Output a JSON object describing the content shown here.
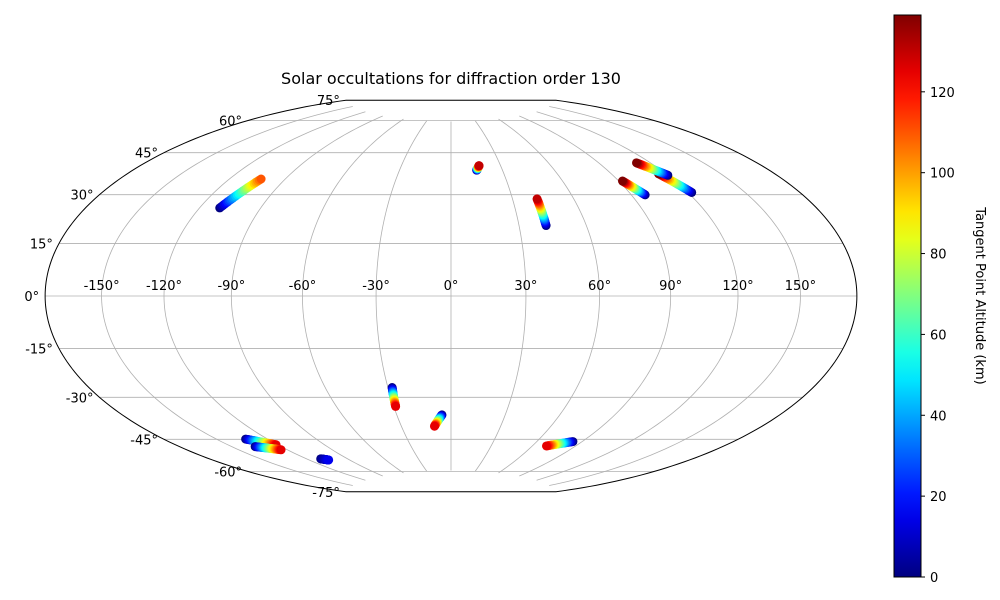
{
  "chart_data": {
    "type": "scatter",
    "projection": "hammer",
    "title": "Solar occultations for diffraction order 130",
    "xticks": [
      "-150°",
      "-120°",
      "-90°",
      "-60°",
      "-30°",
      "0°",
      "30°",
      "60°",
      "90°",
      "120°",
      "150°"
    ],
    "xtick_values": [
      -150,
      -120,
      -90,
      -60,
      -30,
      0,
      30,
      60,
      90,
      120,
      150
    ],
    "yticks": [
      "75°",
      "60°",
      "45°",
      "30°",
      "15°",
      "0°",
      "-15°",
      "-30°",
      "-45°",
      "-60°",
      "-75°"
    ],
    "ytick_values": [
      75,
      60,
      45,
      30,
      15,
      0,
      -15,
      -30,
      -45,
      -60,
      -75
    ],
    "grid": true,
    "colorbar": {
      "label": "Tangent Point Altitude (km)",
      "cmap": "jet",
      "range": [
        0,
        139
      ],
      "ticks": [
        "0",
        "20",
        "40",
        "60",
        "80",
        "100",
        "120"
      ],
      "tick_values": [
        0,
        20,
        40,
        60,
        80,
        100,
        120
      ]
    },
    "series": [
      {
        "lon_start": -110,
        "lat_start": 32,
        "lon_end": -103,
        "lat_end": 44,
        "alt_start": 0,
        "alt_end": 110
      },
      {
        "lon_start": 15,
        "lat_start": 52,
        "lon_end": 17,
        "lat_end": 54,
        "alt_start": 0,
        "alt_end": 130
      },
      {
        "lon_start": 42,
        "lat_start": 28,
        "lon_end": 42,
        "lat_end": 39,
        "alt_start": 0,
        "alt_end": 130
      },
      {
        "lon_start": 97,
        "lat_start": 38,
        "lon_end": 92,
        "lat_end": 44,
        "alt_start": 0,
        "alt_end": 139
      },
      {
        "lon_start": 122,
        "lat_start": 37,
        "lon_end": 116,
        "lat_end": 45,
        "alt_start": 0,
        "alt_end": 139
      },
      {
        "lon_start": 120,
        "lat_start": 44,
        "lon_end": 112,
        "lat_end": 50,
        "alt_start": 0,
        "alt_end": 139
      },
      {
        "lon_start": -28,
        "lat_start": -37,
        "lon_end": -29,
        "lat_end": -45,
        "alt_start": 0,
        "alt_end": 125
      },
      {
        "lon_start": -5,
        "lat_start": -49,
        "lon_end": -10,
        "lat_end": -54,
        "alt_start": 0,
        "alt_end": 125
      },
      {
        "lon_start": 84,
        "lat_start": -58,
        "lon_end": 70,
        "lat_end": -61,
        "alt_start": 0,
        "alt_end": 125
      },
      {
        "lon_start": -133,
        "lat_start": -52,
        "lon_end": -121,
        "lat_end": -56,
        "alt_start": 0,
        "alt_end": 125
      },
      {
        "lon_start": -136,
        "lat_start": -55,
        "lon_end": -124,
        "lat_end": -58,
        "alt_start": 0,
        "alt_end": 125
      },
      {
        "lon_start": -110,
        "lat_start": -64,
        "lon_end": -106,
        "lat_end": -65,
        "alt_start": 0,
        "alt_end": 15
      }
    ]
  }
}
